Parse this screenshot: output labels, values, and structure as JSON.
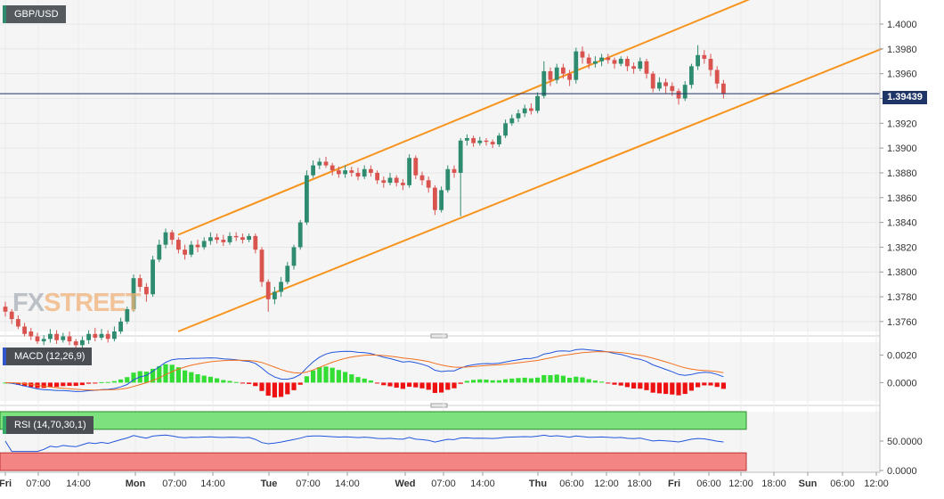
{
  "header": {
    "pair": "GBP/USD"
  },
  "watermark": {
    "fx": "FX",
    "street": "STREET"
  },
  "indicators": {
    "macd_label": "MACD (12,26,9)",
    "rsi_label": "RSI (14,70,30,1)"
  },
  "colors": {
    "up": "#2e8b6f",
    "down": "#d9534f",
    "channel": "#f7941d",
    "current_line": "#1f3567",
    "macd_line": "#2255dd",
    "signal_line": "#f07020",
    "hist_pos": "#33dd33",
    "hist_neg": "#ee1111",
    "rsi_overbought": "#7de27d",
    "rsi_oversold": "#f48585"
  },
  "chart_data": {
    "type": "candlestick",
    "price_axis": {
      "min": 1.3752,
      "max": 1.4018,
      "ticks": [
        "1.4000",
        "1.3980",
        "1.3960",
        "1.3940",
        "1.3920",
        "1.3900",
        "1.3880",
        "1.3860",
        "1.3840",
        "1.3820",
        "1.3800",
        "1.3780",
        "1.3760"
      ]
    },
    "current_price": {
      "value": 1.39439,
      "label": "1.39439"
    },
    "time_axis": {
      "labels": [
        "Fri",
        "07:00",
        "14:00",
        "Mon",
        "07:00",
        "14:00",
        "Tue",
        "07:00",
        "14:00",
        "Wed",
        "07:00",
        "14:00",
        "Thu",
        "06:00",
        "12:00",
        "18:00",
        "Fri",
        "06:00",
        "12:00",
        "18:00",
        "Sun",
        "06:00",
        "12:00"
      ],
      "bold": [
        "Fri",
        "Mon",
        "Tue",
        "Wed",
        "Thu",
        "Sun"
      ]
    },
    "candles": [
      [
        1.3772,
        1.3768,
        1.3776,
        1.3764
      ],
      [
        1.3768,
        1.3762,
        1.377,
        1.3758
      ],
      [
        1.3762,
        1.3756,
        1.3765,
        1.3754
      ],
      [
        1.3756,
        1.375,
        1.3759,
        1.3748
      ],
      [
        1.3752,
        1.3748,
        1.3755,
        1.3745
      ],
      [
        1.3748,
        1.3744,
        1.3751,
        1.3742
      ],
      [
        1.3744,
        1.3746,
        1.3749,
        1.3741
      ],
      [
        1.3746,
        1.375,
        1.3754,
        1.3743
      ],
      [
        1.375,
        1.3745,
        1.3753,
        1.3742
      ],
      [
        1.3745,
        1.3748,
        1.3751,
        1.3743
      ],
      [
        1.3748,
        1.3744,
        1.3752,
        1.3741
      ],
      [
        1.3744,
        1.3741,
        1.3746,
        1.3738
      ],
      [
        1.3741,
        1.3745,
        1.3748,
        1.3739
      ],
      [
        1.3745,
        1.375,
        1.3753,
        1.3742
      ],
      [
        1.375,
        1.3747,
        1.3755,
        1.3744
      ],
      [
        1.3747,
        1.375,
        1.3754,
        1.3745
      ],
      [
        1.375,
        1.3746,
        1.3753,
        1.3743
      ],
      [
        1.3746,
        1.3752,
        1.3756,
        1.3744
      ],
      [
        1.3752,
        1.376,
        1.3763,
        1.375
      ],
      [
        1.376,
        1.377,
        1.3772,
        1.3758
      ],
      [
        1.377,
        1.3795,
        1.3798,
        1.3768
      ],
      [
        1.3795,
        1.3788,
        1.3798,
        1.3784
      ],
      [
        1.3788,
        1.3782,
        1.3791,
        1.3776
      ],
      [
        1.3782,
        1.381,
        1.3813,
        1.378
      ],
      [
        1.381,
        1.3822,
        1.3826,
        1.3808
      ],
      [
        1.3822,
        1.3832,
        1.3835,
        1.3819
      ],
      [
        1.3832,
        1.3826,
        1.3834,
        1.3822
      ],
      [
        1.3826,
        1.3818,
        1.3828,
        1.3815
      ],
      [
        1.3818,
        1.3814,
        1.3822,
        1.381
      ],
      [
        1.3814,
        1.3822,
        1.3825,
        1.3812
      ],
      [
        1.3822,
        1.382,
        1.3826,
        1.3816
      ],
      [
        1.382,
        1.3825,
        1.3828,
        1.3818
      ],
      [
        1.3825,
        1.3828,
        1.3832,
        1.3822
      ],
      [
        1.3828,
        1.3826,
        1.3831,
        1.3823
      ],
      [
        1.3826,
        1.3824,
        1.383,
        1.3821
      ],
      [
        1.3824,
        1.3829,
        1.3832,
        1.3822
      ],
      [
        1.3829,
        1.3828,
        1.3832,
        1.3825
      ],
      [
        1.3828,
        1.3826,
        1.3831,
        1.3823
      ],
      [
        1.3826,
        1.3829,
        1.3831,
        1.3824
      ],
      [
        1.3829,
        1.3818,
        1.3831,
        1.3815
      ],
      [
        1.3818,
        1.3792,
        1.382,
        1.3788
      ],
      [
        1.3792,
        1.3778,
        1.3794,
        1.3768
      ],
      [
        1.3778,
        1.3784,
        1.3788,
        1.3774
      ],
      [
        1.3784,
        1.3792,
        1.3796,
        1.378
      ],
      [
        1.3792,
        1.3805,
        1.3808,
        1.379
      ],
      [
        1.3805,
        1.382,
        1.3822,
        1.3802
      ],
      [
        1.382,
        1.384,
        1.3842,
        1.3818
      ],
      [
        1.384,
        1.3878,
        1.3882,
        1.3838
      ],
      [
        1.3878,
        1.3886,
        1.389,
        1.3876
      ],
      [
        1.3886,
        1.3889,
        1.3892,
        1.3883
      ],
      [
        1.3889,
        1.3886,
        1.3893,
        1.3884
      ],
      [
        1.3886,
        1.3882,
        1.3888,
        1.3878
      ],
      [
        1.3882,
        1.3879,
        1.3885,
        1.3876
      ],
      [
        1.3879,
        1.3882,
        1.3886,
        1.3876
      ],
      [
        1.3882,
        1.388,
        1.3885,
        1.3877
      ],
      [
        1.388,
        1.3877,
        1.3884,
        1.3874
      ],
      [
        1.3877,
        1.3883,
        1.3886,
        1.3875
      ],
      [
        1.3883,
        1.388,
        1.3886,
        1.3877
      ],
      [
        1.388,
        1.3874,
        1.3882,
        1.3871
      ],
      [
        1.3874,
        1.3872,
        1.3877,
        1.3868
      ],
      [
        1.3872,
        1.3876,
        1.388,
        1.387
      ],
      [
        1.3876,
        1.3872,
        1.3878,
        1.3869
      ],
      [
        1.3872,
        1.387,
        1.3875,
        1.3866
      ],
      [
        1.387,
        1.3892,
        1.3895,
        1.3868
      ],
      [
        1.3892,
        1.3878,
        1.3894,
        1.3875
      ],
      [
        1.3878,
        1.3874,
        1.3881,
        1.387
      ],
      [
        1.3874,
        1.3868,
        1.3877,
        1.3864
      ],
      [
        1.3868,
        1.385,
        1.387,
        1.3846
      ],
      [
        1.385,
        1.3866,
        1.3869,
        1.3848
      ],
      [
        1.3866,
        1.3883,
        1.3886,
        1.3864
      ],
      [
        1.3883,
        1.388,
        1.3886,
        1.3876
      ],
      [
        1.388,
        1.3906,
        1.3908,
        1.3845
      ],
      [
        1.3906,
        1.3908,
        1.3911,
        1.3902
      ],
      [
        1.3908,
        1.3904,
        1.391,
        1.3901
      ],
      [
        1.3904,
        1.3906,
        1.3909,
        1.3902
      ],
      [
        1.3906,
        1.3905,
        1.3908,
        1.3902
      ],
      [
        1.3905,
        1.3903,
        1.3907,
        1.39
      ],
      [
        1.3903,
        1.391,
        1.3912,
        1.3901
      ],
      [
        1.391,
        1.392,
        1.3923,
        1.3908
      ],
      [
        1.392,
        1.3924,
        1.3927,
        1.3918
      ],
      [
        1.3924,
        1.3928,
        1.3931,
        1.3921
      ],
      [
        1.3928,
        1.3932,
        1.3935,
        1.3925
      ],
      [
        1.3932,
        1.393,
        1.3936,
        1.3927
      ],
      [
        1.393,
        1.3942,
        1.3945,
        1.3928
      ],
      [
        1.3942,
        1.3962,
        1.397,
        1.394
      ],
      [
        1.3962,
        1.3955,
        1.3965,
        1.395
      ],
      [
        1.3955,
        1.3965,
        1.3968,
        1.3952
      ],
      [
        1.3965,
        1.396,
        1.3968,
        1.3956
      ],
      [
        1.396,
        1.3955,
        1.3963,
        1.395
      ],
      [
        1.3955,
        1.3978,
        1.3981,
        1.3952
      ],
      [
        1.3978,
        1.3973,
        1.3982,
        1.3968
      ],
      [
        1.3973,
        1.3968,
        1.3976,
        1.3964
      ],
      [
        1.3968,
        1.397,
        1.3974,
        1.3965
      ],
      [
        1.397,
        1.3973,
        1.3976,
        1.3966
      ],
      [
        1.3973,
        1.3971,
        1.3976,
        1.3968
      ],
      [
        1.3971,
        1.3968,
        1.3973,
        1.3964
      ],
      [
        1.3968,
        1.3972,
        1.3974,
        1.3966
      ],
      [
        1.3972,
        1.3966,
        1.3974,
        1.3962
      ],
      [
        1.3966,
        1.3964,
        1.3969,
        1.396
      ],
      [
        1.3964,
        1.397,
        1.3973,
        1.3962
      ],
      [
        1.397,
        1.396,
        1.3972,
        1.3956
      ],
      [
        1.396,
        1.3948,
        1.3962,
        1.3945
      ],
      [
        1.3948,
        1.3953,
        1.3957,
        1.3946
      ],
      [
        1.3953,
        1.395,
        1.3956,
        1.3944
      ],
      [
        1.395,
        1.3946,
        1.3953,
        1.3942
      ],
      [
        1.3946,
        1.394,
        1.3948,
        1.3935
      ],
      [
        1.394,
        1.3951,
        1.3954,
        1.3938
      ],
      [
        1.3951,
        1.3966,
        1.3968,
        1.3948
      ],
      [
        1.3966,
        1.3975,
        1.3983,
        1.3963
      ],
      [
        1.3975,
        1.3972,
        1.3979,
        1.3968
      ],
      [
        1.3972,
        1.3963,
        1.3976,
        1.3958
      ],
      [
        1.3963,
        1.3952,
        1.3966,
        1.3948
      ],
      [
        1.3952,
        1.3944,
        1.3955,
        1.394
      ]
    ],
    "channel": {
      "upper": [
        [
          0.0,
          1.383
        ],
        [
          1.0,
          1.4064
        ]
      ],
      "lower": [
        [
          0.0,
          1.3752
        ],
        [
          1.0,
          1.398
        ]
      ]
    },
    "macd": {
      "axis_ticks": [
        "0.0020",
        "0.0000"
      ],
      "range": [
        -0.0012,
        0.0028
      ]
    },
    "rsi": {
      "axis_ticks": [
        "50.0000",
        "0.0000"
      ],
      "overbought": 70,
      "oversold": 30,
      "range": [
        0,
        100
      ]
    }
  }
}
